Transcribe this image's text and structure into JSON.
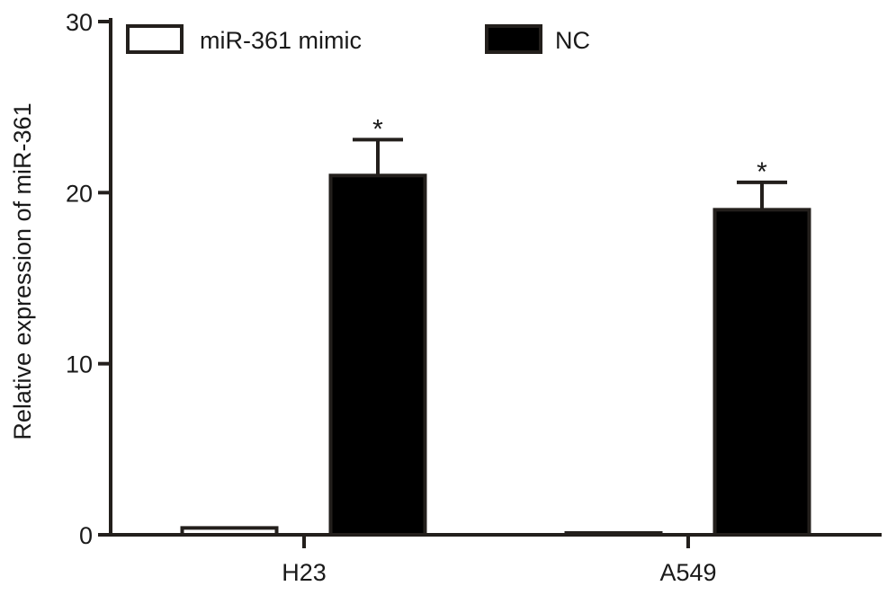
{
  "chart_data": {
    "type": "bar",
    "categories": [
      "H23",
      "A549"
    ],
    "series": [
      {
        "name": "miR-361 mimic",
        "values": [
          0.4,
          0.1
        ],
        "errors": [
          0.1,
          0.1
        ],
        "color": "#ffffff"
      },
      {
        "name": "NC",
        "values": [
          21.0,
          19.0
        ],
        "errors": [
          2.1,
          1.6
        ],
        "color": "#000000"
      }
    ],
    "significance": [
      {
        "category": "H23",
        "series": "NC",
        "mark": "*"
      },
      {
        "category": "A549",
        "series": "NC",
        "mark": "*"
      }
    ],
    "ylabel": "Relative expression of miR-361",
    "xlabel": "",
    "ylim": [
      0,
      30
    ],
    "yticks": [
      0,
      10,
      20,
      30
    ],
    "grid": false,
    "legend_position": "top"
  }
}
